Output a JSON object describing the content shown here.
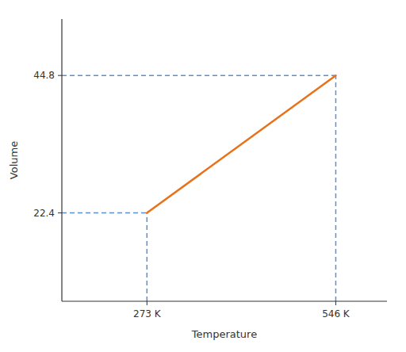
{
  "chart_data": {
    "type": "line",
    "xlabel": "Temperature",
    "ylabel": "Volume",
    "x": [
      273,
      546
    ],
    "series": [
      {
        "color": "#e8711a",
        "values": [
          22.4,
          44.8
        ]
      }
    ],
    "xlim": [
      150,
      620
    ],
    "ylim": [
      8,
      54
    ],
    "xticks": [
      {
        "value": 273,
        "label": "273 K"
      },
      {
        "value": 546,
        "label": "546 K"
      }
    ],
    "yticks": [
      22.4,
      44.8
    ],
    "grid": false
  }
}
